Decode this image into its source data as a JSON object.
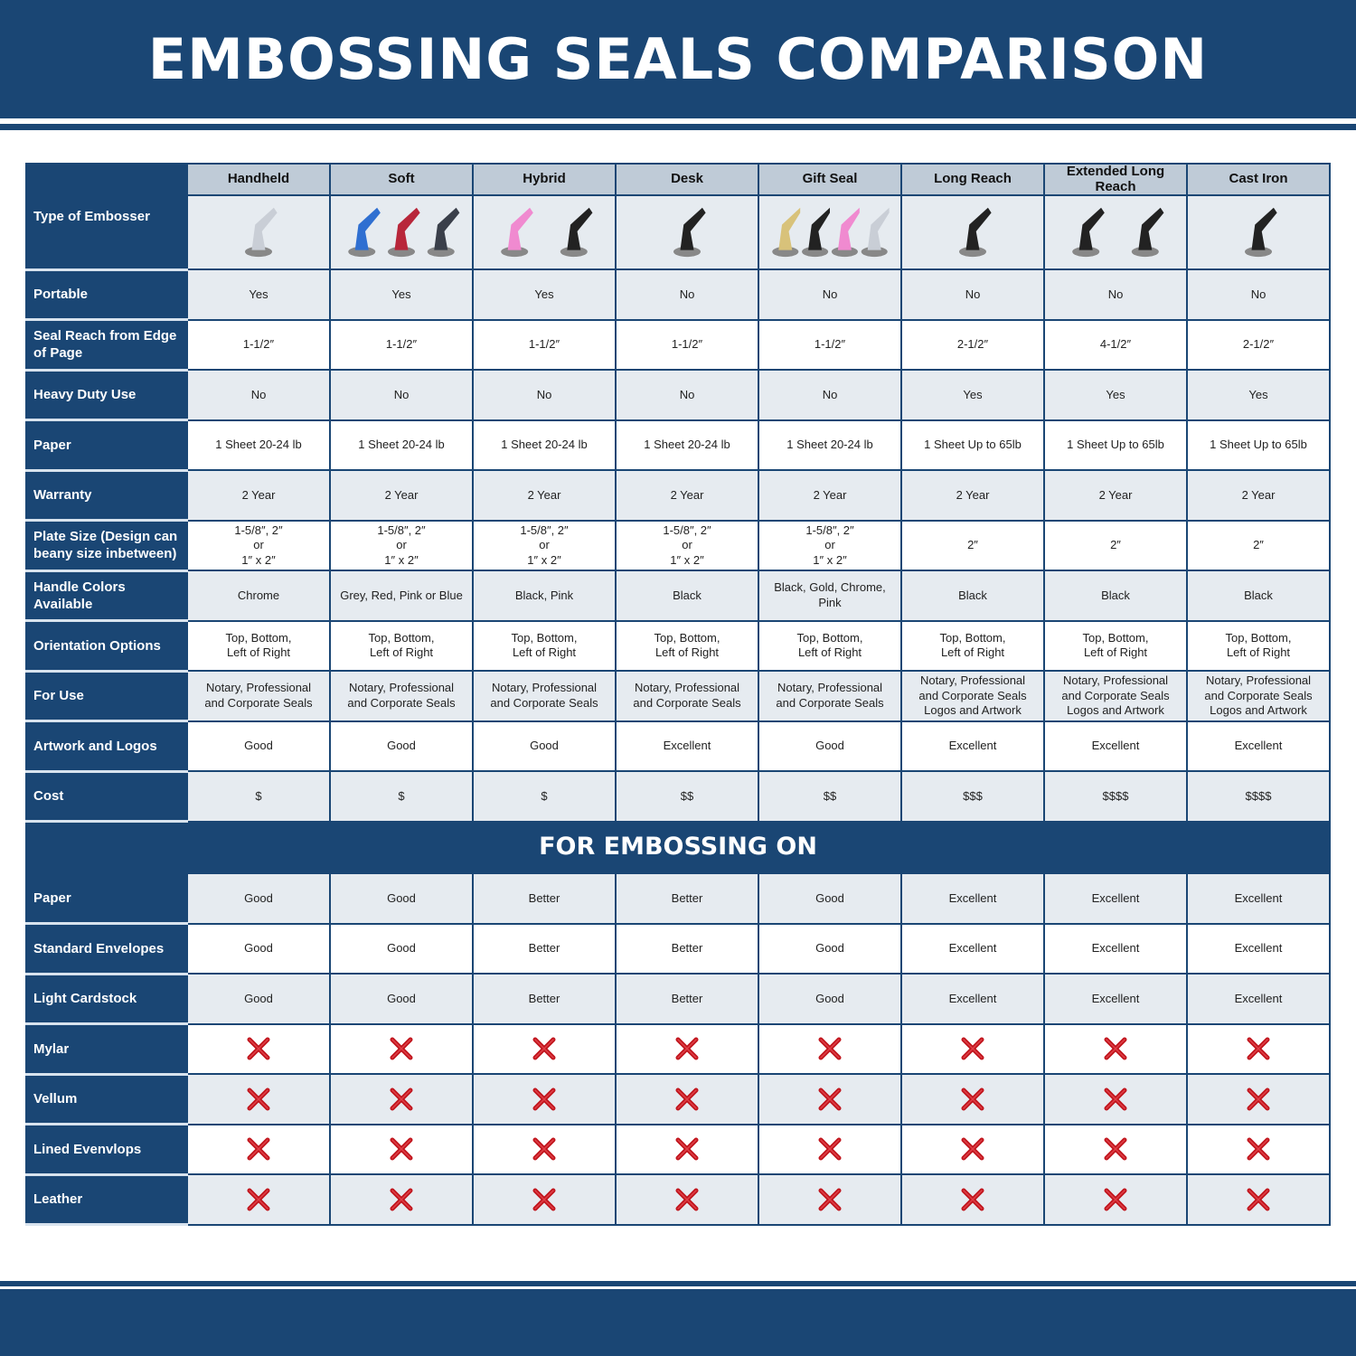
{
  "title": "EMBOSSING SEALS COMPARISON",
  "colors": {
    "navy": "#1a4674",
    "header_gray": "#bfcbd7",
    "row_gray": "#e6ebf0",
    "x_red": "#c0141c"
  },
  "type_label": "Type of Embosser",
  "columns": [
    "Handheld",
    "Soft",
    "Hybrid",
    "Desk",
    "Gift Seal",
    "Long Reach",
    "Extended Long Reach",
    "Cast Iron"
  ],
  "product_images": [
    "chrome handheld embosser",
    "blue, red and grey soft embossers",
    "pink and black hybrid embossers",
    "black desk embosser",
    "gold, black, pink and chrome gift seals",
    "black long reach embosser",
    "two black extended long reach embossers",
    "black cast iron embosser"
  ],
  "rows": [
    {
      "label": "Portable",
      "values": [
        "Yes",
        "Yes",
        "Yes",
        "No",
        "No",
        "No",
        "No",
        "No"
      ]
    },
    {
      "label": "Seal Reach from Edge of Page",
      "values": [
        "1-1/2″",
        "1-1/2″",
        "1-1/2″",
        "1-1/2″",
        "1-1/2″",
        "2-1/2″",
        "4-1/2″",
        "2-1/2″"
      ]
    },
    {
      "label": "Heavy Duty Use",
      "values": [
        "No",
        "No",
        "No",
        "No",
        "No",
        "Yes",
        "Yes",
        "Yes"
      ]
    },
    {
      "label": "Paper",
      "values": [
        "1 Sheet 20-24 lb",
        "1 Sheet 20-24 lb",
        "1 Sheet 20-24 lb",
        "1 Sheet 20-24 lb",
        "1 Sheet 20-24 lb",
        "1 Sheet Up to 65lb",
        "1 Sheet Up to 65lb",
        "1 Sheet Up to 65lb"
      ]
    },
    {
      "label": "Warranty",
      "values": [
        "2 Year",
        "2 Year",
        "2 Year",
        "2 Year",
        "2 Year",
        "2 Year",
        "2 Year",
        "2 Year"
      ]
    },
    {
      "label": "Plate Size (Design can beany size inbetween)",
      "values": [
        "1-5/8″, 2″\nor\n1″ x 2″",
        "1-5/8″, 2″\nor\n1″ x 2″",
        "1-5/8″, 2″\nor\n1″ x 2″",
        "1-5/8″, 2″\nor\n1″ x 2″",
        "1-5/8″, 2″\nor\n1″ x 2″",
        "2″",
        "2″",
        "2″"
      ]
    },
    {
      "label": "Handle Colors Available",
      "values": [
        "Chrome",
        "Grey, Red, Pink or Blue",
        "Black, Pink",
        "Black",
        "Black, Gold, Chrome, Pink",
        "Black",
        "Black",
        "Black"
      ]
    },
    {
      "label": "Orientation Options",
      "values": [
        "Top, Bottom,\nLeft of Right",
        "Top, Bottom,\nLeft of Right",
        "Top, Bottom,\nLeft of Right",
        "Top, Bottom,\nLeft of Right",
        "Top, Bottom,\nLeft of Right",
        "Top, Bottom,\nLeft of Right",
        "Top, Bottom,\nLeft of Right",
        "Top, Bottom,\nLeft of Right"
      ]
    },
    {
      "label": "For Use",
      "values": [
        "Notary, Professional\nand Corporate Seals",
        "Notary, Professional\nand Corporate Seals",
        "Notary, Professional\nand Corporate Seals",
        "Notary, Professional\nand Corporate Seals",
        "Notary, Professional\nand Corporate Seals",
        "Notary, Professional\nand Corporate Seals\nLogos and Artwork",
        "Notary, Professional\nand Corporate Seals\nLogos and Artwork",
        "Notary, Professional\nand Corporate Seals\nLogos and Artwork"
      ]
    },
    {
      "label": "Artwork and Logos",
      "values": [
        "Good",
        "Good",
        "Good",
        "Excellent",
        "Good",
        "Excellent",
        "Excellent",
        "Excellent"
      ]
    },
    {
      "label": "Cost",
      "values": [
        "$",
        "$",
        "$",
        "$$",
        "$$",
        "$$$",
        "$$$$",
        "$$$$"
      ]
    }
  ],
  "section_title": "FOR EMBOSSING ON",
  "embossing_rows": [
    {
      "label": "Paper",
      "values": [
        "Good",
        "Good",
        "Better",
        "Better",
        "Good",
        "Excellent",
        "Excellent",
        "Excellent"
      ]
    },
    {
      "label": "Standard Envelopes",
      "values": [
        "Good",
        "Good",
        "Better",
        "Better",
        "Good",
        "Excellent",
        "Excellent",
        "Excellent"
      ]
    },
    {
      "label": "Light Cardstock",
      "values": [
        "Good",
        "Good",
        "Better",
        "Better",
        "Good",
        "Excellent",
        "Excellent",
        "Excellent"
      ]
    },
    {
      "label": "Mylar",
      "values": [
        "x-icon",
        "x-icon",
        "x-icon",
        "x-icon",
        "x-icon",
        "x-icon",
        "x-icon",
        "x-icon"
      ]
    },
    {
      "label": "Vellum",
      "values": [
        "x-icon",
        "x-icon",
        "x-icon",
        "x-icon",
        "x-icon",
        "x-icon",
        "x-icon",
        "x-icon"
      ]
    },
    {
      "label": "Lined Evenvlops",
      "values": [
        "x-icon",
        "x-icon",
        "x-icon",
        "x-icon",
        "x-icon",
        "x-icon",
        "x-icon",
        "x-icon"
      ]
    },
    {
      "label": "Leather",
      "values": [
        "x-icon",
        "x-icon",
        "x-icon",
        "x-icon",
        "x-icon",
        "x-icon",
        "x-icon",
        "x-icon"
      ]
    }
  ]
}
